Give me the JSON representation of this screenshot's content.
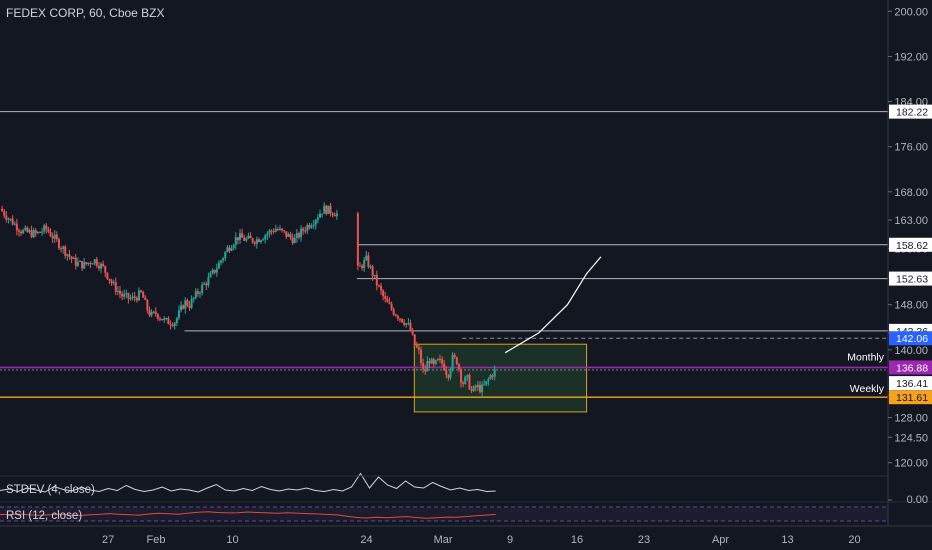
{
  "chart_data": {
    "type": "candlestick",
    "title": "FEDEX CORP, 60, Cboe BZX",
    "colors": {
      "background": "#131722",
      "up": "#26a69a",
      "down": "#ef5350",
      "level_line": "#b2b5be",
      "monthly": "#9c27b0",
      "weekly": "#f7a21b",
      "box_border": "#d4a017",
      "box_fill": "#1f3a28",
      "last_price": "#2962ff",
      "stdev_line": "#d1d4dc",
      "rsi_line": "#e04b3a",
      "rsi_band": "#7e57c2"
    },
    "y_axis": {
      "ylim": [
        118,
        202
      ],
      "ticks": [
        200,
        192,
        184,
        176,
        168,
        163,
        158,
        153,
        148,
        143,
        140,
        132,
        128,
        124.5,
        120
      ],
      "tick_labels": [
        "200.00",
        "192.00",
        "184.00",
        "176.00",
        "168.00",
        "163.00",
        "158.00",
        "153.00",
        "148.00",
        "143.00",
        "140.00",
        "132.00",
        "128.00",
        "124.50",
        "120.00"
      ]
    },
    "x_axis": {
      "tick_labels": [
        "27",
        "Feb",
        "10",
        "24",
        "Mar",
        "9",
        "16",
        "23",
        "Apr",
        "13",
        "20"
      ],
      "tick_days": [
        -3,
        2,
        10,
        24,
        32,
        39,
        46,
        53,
        61,
        68,
        75
      ],
      "xlim": [
        -14.3,
        78.5
      ]
    },
    "price_path": [
      [
        -14.3,
        165.0
      ],
      [
        -13.5,
        163.5
      ],
      [
        -12.0,
        161.0
      ],
      [
        -10.5,
        160.5
      ],
      [
        -9.5,
        161.5
      ],
      [
        -8.5,
        159.5
      ],
      [
        -7.5,
        157.5
      ],
      [
        -6.5,
        155.5
      ],
      [
        -5.5,
        155.0
      ],
      [
        -4.5,
        156.0
      ],
      [
        -3.5,
        154.5
      ],
      [
        -2.5,
        151.5
      ],
      [
        -1.5,
        149.5
      ],
      [
        -0.5,
        149.0
      ],
      [
        0.5,
        150.0
      ],
      [
        1.0,
        147.5
      ],
      [
        1.5,
        146.0
      ],
      [
        2.0,
        146.5
      ],
      [
        3.0,
        145.0
      ],
      [
        4.0,
        145.0
      ],
      [
        5.0,
        148.5
      ],
      [
        5.5,
        148.0
      ],
      [
        6.5,
        150.5
      ],
      [
        7.5,
        152.5
      ],
      [
        8.5,
        155.0
      ],
      [
        9.5,
        158.0
      ],
      [
        10.5,
        160.0
      ],
      [
        11.5,
        159.5
      ],
      [
        12.5,
        159.5
      ],
      [
        13.5,
        160.5
      ],
      [
        14.5,
        161.5
      ],
      [
        15.5,
        160.5
      ],
      [
        16.5,
        159.5
      ],
      [
        17.5,
        161.5
      ],
      [
        18.5,
        163.0
      ],
      [
        19.5,
        165.0
      ],
      [
        20.5,
        164.5
      ],
      [
        21.0,
        164.0
      ],
      [
        23.0,
        154.0
      ],
      [
        24.0,
        156.0
      ],
      [
        25.0,
        152.0
      ],
      [
        26.0,
        148.5
      ],
      [
        27.0,
        146.5
      ],
      [
        28.0,
        145.0
      ],
      [
        28.5,
        144.0
      ],
      [
        29.0,
        141.0
      ],
      [
        29.5,
        139.5
      ],
      [
        30.0,
        135.5
      ],
      [
        30.5,
        138.5
      ],
      [
        31.0,
        137.0
      ],
      [
        31.5,
        138.0
      ],
      [
        32.0,
        137.5
      ],
      [
        32.5,
        135.5
      ],
      [
        33.0,
        138.5
      ],
      [
        33.5,
        138.0
      ],
      [
        34.0,
        134.0
      ],
      [
        34.5,
        135.0
      ],
      [
        35.0,
        132.5
      ],
      [
        35.5,
        133.5
      ],
      [
        36.0,
        133.0
      ],
      [
        36.5,
        134.0
      ],
      [
        37.0,
        135.5
      ],
      [
        37.5,
        136.4
      ]
    ],
    "horizontal_levels": [
      {
        "value": 182.22,
        "label": "182.22",
        "x_start_day": -14.3,
        "style": "solid"
      },
      {
        "value": 158.62,
        "label": "158.62",
        "x_start_day": 23.0,
        "style": "solid"
      },
      {
        "value": 152.63,
        "label": "152.63",
        "x_start_day": 23.0,
        "style": "solid"
      },
      {
        "value": 143.36,
        "label": "143.36",
        "x_start_day": 5.0,
        "style": "solid"
      },
      {
        "value": 142.06,
        "label": "142.06",
        "x_start_day": 34.0,
        "style": "dashed"
      },
      {
        "value": 131.61,
        "label": "131.61",
        "x_start_day": -14.3,
        "style": "solid",
        "name": "Weekly"
      },
      {
        "value": 136.88,
        "label": "136.88",
        "x_start_day": -14.3,
        "style": "solid",
        "name": "Monthly"
      }
    ],
    "current_price": {
      "value": 136.41,
      "label": "136.41"
    },
    "box": {
      "x0_day": 29.0,
      "x1_day": 47.0,
      "y0": 129.0,
      "y1": 141.0
    },
    "projection": [
      [
        38.5,
        139.5
      ],
      [
        42.0,
        143.0
      ],
      [
        45.0,
        148.0
      ],
      [
        47.0,
        153.5
      ],
      [
        48.5,
        156.5
      ]
    ],
    "stdev": {
      "name": "STDEV (4, close)",
      "values": [
        1.1,
        1.4,
        0.9,
        1.6,
        1.2,
        0.8,
        1.9,
        1.3,
        1.0,
        1.7,
        1.2,
        0.9,
        1.5,
        1.1,
        2.1,
        1.3,
        0.9,
        1.2,
        1.8,
        1.0,
        1.4,
        1.2,
        0.8,
        1.6,
        2.3,
        1.2,
        1.0,
        1.5,
        1.1,
        1.9,
        1.3,
        1.0,
        1.4,
        1.2,
        1.6,
        1.1,
        0.9,
        1.3,
        1.0,
        1.8,
        4.5,
        1.6,
        3.8,
        2.2,
        1.5,
        3.0,
        1.8,
        1.6,
        2.7,
        1.9,
        1.2,
        1.6,
        1.1,
        1.3,
        0.9,
        1.0
      ],
      "zero_label": "0.00"
    },
    "rsi": {
      "name": "RSI (12, close)",
      "values": [
        48,
        47,
        50,
        46,
        44,
        47,
        49,
        45,
        43,
        46,
        48,
        52,
        49,
        47,
        45,
        50,
        53,
        51,
        49,
        54,
        58,
        60,
        57,
        55,
        56,
        59,
        57,
        55,
        53,
        56,
        54,
        52,
        50,
        48,
        46,
        40,
        34,
        32,
        35,
        33,
        36,
        38,
        34,
        31,
        33,
        36,
        35,
        38,
        42,
        45,
        48
      ]
    }
  }
}
